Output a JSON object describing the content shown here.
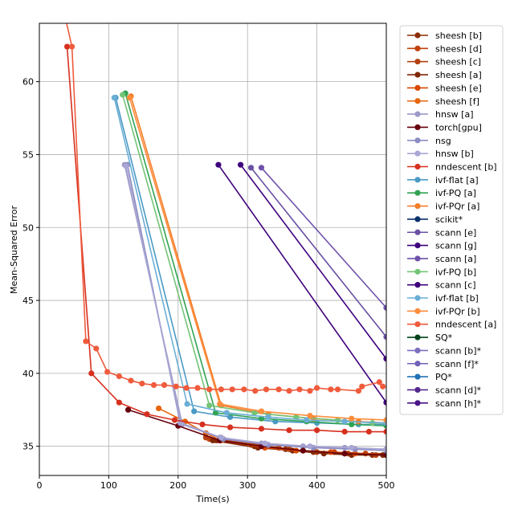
{
  "chart_data": {
    "type": "line",
    "title": "",
    "xlabel": "Time(s)",
    "ylabel": "Mean-Squared Error",
    "xlim": [
      0,
      500
    ],
    "ylim": [
      33,
      64
    ],
    "xticks": [
      0,
      100,
      200,
      300,
      400,
      500
    ],
    "yticks": [
      35,
      40,
      45,
      50,
      55,
      60
    ],
    "grid": true,
    "legend_position": "right, outside plot",
    "series": [
      {
        "name": "sheesh [b]",
        "color": "#8c2d04",
        "x": [
          255,
          310,
          355,
          395,
          440,
          480,
          500
        ],
        "y": [
          35.4,
          35.0,
          34.8,
          34.6,
          34.5,
          34.4,
          34.4
        ]
      },
      {
        "name": "sheesh [d]",
        "color": "#c2410c",
        "x": [
          245,
          305,
          345,
          380,
          425,
          470,
          500
        ],
        "y": [
          35.5,
          35.1,
          34.9,
          34.7,
          34.6,
          34.5,
          34.5
        ]
      },
      {
        "name": "sheesh [c]",
        "color": "#b5400f",
        "x": [
          240,
          315,
          360,
          400,
          445,
          485,
          500
        ],
        "y": [
          35.6,
          35.1,
          34.8,
          34.6,
          34.5,
          34.4,
          34.4
        ]
      },
      {
        "name": "sheesh [a]",
        "color": "#7f2704",
        "x": [
          250,
          315,
          365,
          410,
          450,
          495
        ],
        "y": [
          35.4,
          34.9,
          34.7,
          34.5,
          34.4,
          34.4
        ]
      },
      {
        "name": "sheesh [e]",
        "color": "#d94801",
        "x": [
          260,
          325,
          370,
          420,
          455,
          500
        ],
        "y": [
          35.4,
          34.9,
          34.7,
          34.6,
          34.5,
          34.4
        ]
      },
      {
        "name": "sheesh [f]",
        "color": "#e6650d",
        "x": [
          172,
          210,
          240,
          262
        ],
        "y": [
          37.6,
          36.7,
          35.9,
          35.4
        ]
      },
      {
        "name": "hnsw [a]",
        "color": "#9e9ac8",
        "x": [
          123,
          206,
          260,
          320,
          380,
          440,
          500
        ],
        "y": [
          54.3,
          36.5,
          35.6,
          35.2,
          35.0,
          34.9,
          34.8
        ]
      },
      {
        "name": "torch[gpu]",
        "color": "#67000d",
        "x": [
          128,
          200,
          260,
          320,
          380,
          440,
          500
        ],
        "y": [
          37.5,
          36.4,
          35.4,
          35.0,
          34.7,
          34.5,
          34.4
        ]
      },
      {
        "name": "nsg",
        "color": "#8c8cc2",
        "x": [
          127,
          203,
          265,
          330,
          395,
          455,
          500
        ],
        "y": [
          54.3,
          36.6,
          35.5,
          35.1,
          34.9,
          34.8,
          34.7
        ]
      },
      {
        "name": "hnsw [b]",
        "color": "#a9a6d4",
        "x": [
          125,
          204,
          262,
          325,
          390,
          450,
          500
        ],
        "y": [
          54.2,
          36.6,
          35.6,
          35.2,
          35.0,
          34.9,
          34.8
        ]
      },
      {
        "name": "nndescent [b]",
        "color": "#d7301f",
        "x": [
          40,
          75,
          115,
          155,
          195,
          235,
          275,
          320,
          360,
          400,
          440,
          475,
          500
        ],
        "y": [
          62.4,
          40.0,
          38.0,
          37.2,
          36.8,
          36.5,
          36.3,
          36.2,
          36.1,
          36.1,
          36.0,
          36.0,
          36.0
        ]
      },
      {
        "name": "ivf-flat [a]",
        "color": "#4a9ac4",
        "x": [
          110,
          223,
          275,
          340,
          400,
          460,
          500
        ],
        "y": [
          58.9,
          37.4,
          37.0,
          36.7,
          36.6,
          36.5,
          36.5
        ]
      },
      {
        "name": "ivf-PQ [a]",
        "color": "#31a354",
        "x": [
          124,
          254,
          320,
          385,
          450,
          500
        ],
        "y": [
          59.2,
          37.3,
          36.9,
          36.7,
          36.5,
          36.4
        ]
      },
      {
        "name": "ivf-PQr [a]",
        "color": "#f47e2b",
        "x": [
          132,
          262,
          330,
          395,
          460,
          500
        ],
        "y": [
          59.0,
          37.8,
          37.2,
          36.9,
          36.7,
          36.6
        ]
      },
      {
        "name": "scikit*",
        "color": "#08306b",
        "x": [],
        "y": []
      },
      {
        "name": "scann [e]",
        "color": "#6a51a3",
        "x": [
          305,
          500
        ],
        "y": [
          54.1,
          42.5
        ]
      },
      {
        "name": "scann [g]",
        "color": "#3f007d",
        "x": [
          290,
          500
        ],
        "y": [
          54.3,
          41.0
        ]
      },
      {
        "name": "scann [a]",
        "color": "#6f52ab",
        "x": [
          320,
          500
        ],
        "y": [
          54.1,
          44.5
        ]
      },
      {
        "name": "ivf-PQ [b]",
        "color": "#74c476",
        "x": [
          120,
          245,
          310,
          370,
          430,
          480,
          500
        ],
        "y": [
          59.1,
          37.8,
          37.3,
          37.0,
          36.8,
          36.6,
          36.6
        ]
      },
      {
        "name": "scann [c]",
        "color": "#3f007d",
        "x": [
          258,
          500
        ],
        "y": [
          54.3,
          38.0
        ]
      },
      {
        "name": "ivf-flat [b]",
        "color": "#6baed6",
        "x": [
          108,
          213,
          270,
          330,
          385,
          440,
          500
        ],
        "y": [
          58.9,
          37.9,
          37.3,
          37.0,
          36.8,
          36.7,
          36.6
        ]
      },
      {
        "name": "ivf-PQr [b]",
        "color": "#fd8d3c",
        "x": [
          130,
          260,
          320,
          390,
          450,
          500
        ],
        "y": [
          58.9,
          37.9,
          37.4,
          37.1,
          36.9,
          36.8
        ]
      },
      {
        "name": "nndescent [a]",
        "color": "#ef5b3c",
        "x": [
          32,
          47,
          67,
          82,
          98,
          115,
          132,
          148,
          165,
          180,
          197,
          212,
          228,
          245,
          262,
          278,
          295,
          311,
          327,
          345,
          360,
          375,
          390,
          400,
          420,
          430,
          460,
          465,
          490,
          495
        ],
        "y": [
          65.5,
          62.4,
          42.2,
          41.7,
          40.1,
          39.8,
          39.5,
          39.3,
          39.2,
          39.2,
          39.1,
          39.0,
          39.0,
          38.9,
          38.9,
          38.9,
          38.9,
          38.8,
          38.9,
          38.9,
          38.8,
          38.9,
          38.8,
          39.0,
          38.9,
          38.9,
          38.8,
          39.1,
          39.4,
          39.1
        ]
      },
      {
        "name": "SQ*",
        "color": "#00441b",
        "x": [],
        "y": []
      },
      {
        "name": "scann [b]*",
        "color": "#7b6fbf",
        "x": [],
        "y": []
      },
      {
        "name": "scann [f]*",
        "color": "#6e62b8",
        "x": [],
        "y": []
      },
      {
        "name": "PQ*",
        "color": "#2171b5",
        "x": [],
        "y": []
      },
      {
        "name": "scann [d]*",
        "color": "#54278f",
        "x": [],
        "y": []
      },
      {
        "name": "scann [h]*",
        "color": "#4a1486",
        "x": [],
        "y": []
      }
    ]
  }
}
